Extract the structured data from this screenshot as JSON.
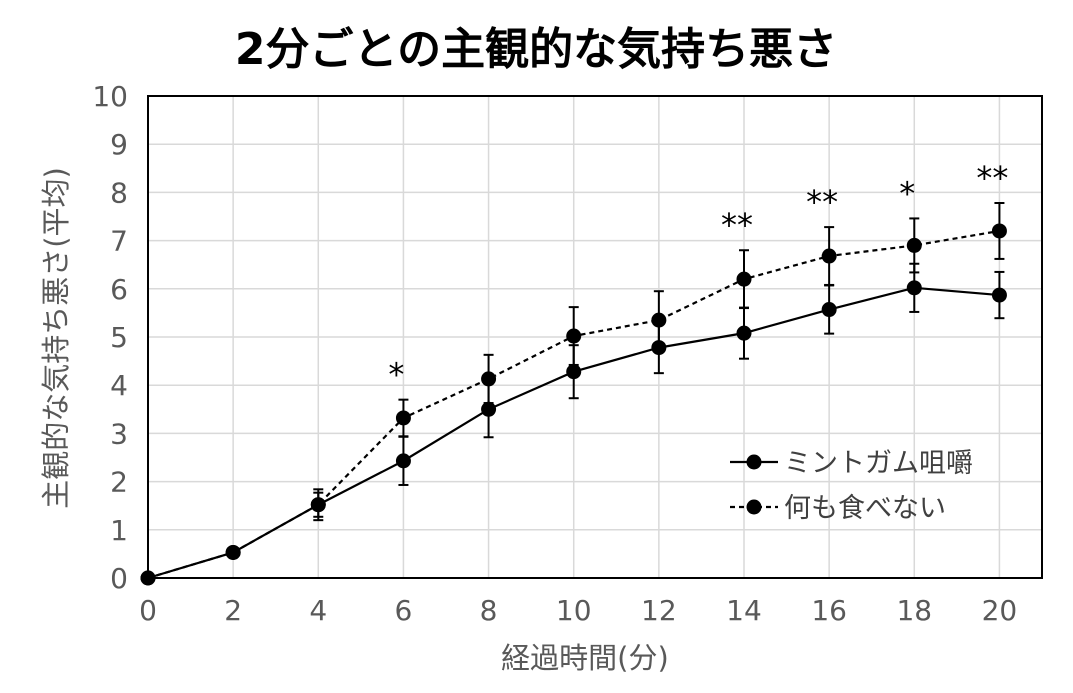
{
  "chart_data": {
    "type": "line",
    "title": "2分ごとの主観的な気持ち悪さ",
    "xlabel": "経過時間(分)",
    "ylabel": "主観的な気持ち悪さ(平均)",
    "x": [
      0,
      2,
      4,
      6,
      8,
      10,
      12,
      14,
      16,
      18,
      20
    ],
    "xlim": [
      0,
      21
    ],
    "ylim": [
      0,
      10
    ],
    "xticks": [
      0,
      2,
      4,
      6,
      8,
      10,
      12,
      14,
      16,
      18,
      20
    ],
    "yticks": [
      0,
      1,
      2,
      3,
      4,
      5,
      6,
      7,
      8,
      9,
      10
    ],
    "grid": true,
    "legend_position": "bottom-right",
    "series": [
      {
        "name": "ミントガム咀嚼",
        "line_style": "solid",
        "color": "#000000",
        "values": [
          0,
          0.53,
          1.52,
          2.43,
          3.5,
          4.28,
          4.78,
          5.08,
          5.57,
          6.02,
          5.87
        ],
        "error": [
          0,
          0,
          0.25,
          0.5,
          0.58,
          0.55,
          0.53,
          0.53,
          0.5,
          0.5,
          0.48
        ]
      },
      {
        "name": "何も食べない",
        "line_style": "dashed",
        "color": "#000000",
        "values": [
          0,
          0.53,
          1.52,
          3.32,
          4.13,
          5.02,
          5.35,
          6.2,
          6.68,
          6.9,
          7.2
        ],
        "error": [
          0,
          0,
          0.32,
          0.38,
          0.5,
          0.6,
          0.6,
          0.6,
          0.6,
          0.56,
          0.58
        ]
      }
    ],
    "annotations": [
      {
        "x": 6,
        "text": "*"
      },
      {
        "x": 14,
        "text": "**"
      },
      {
        "x": 16,
        "text": "**"
      },
      {
        "x": 18,
        "text": "*"
      },
      {
        "x": 20,
        "text": "**"
      }
    ]
  }
}
